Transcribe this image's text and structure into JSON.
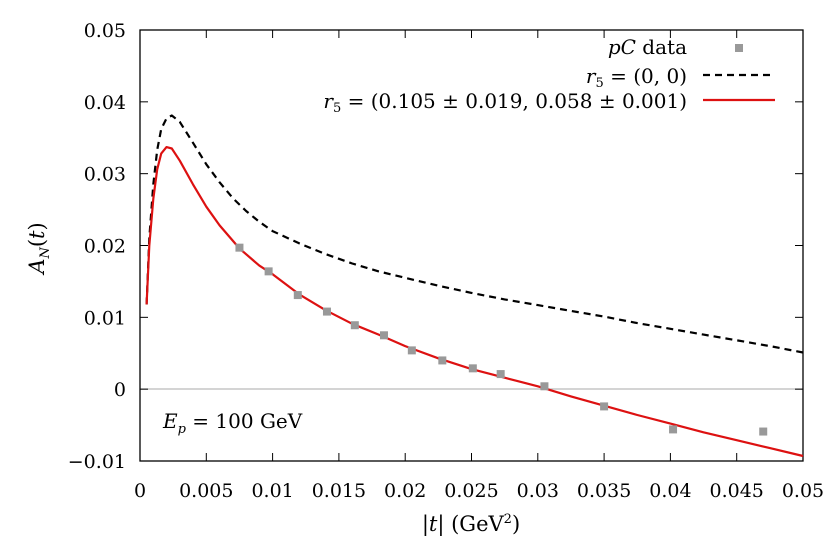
{
  "chart_data": {
    "type": "line",
    "xlabel_parts": [
      "|",
      "t",
      "| (GeV",
      "2",
      ")"
    ],
    "ylabel_parts": [
      "A",
      "N",
      "(",
      "t",
      ")"
    ],
    "xlim": [
      0,
      0.05
    ],
    "ylim": [
      -0.01,
      0.05
    ],
    "x_ticks": [
      "0",
      "0.005",
      "0.01",
      "0.015",
      "0.02",
      "0.025",
      "0.03",
      "0.035",
      "0.04",
      "0.045",
      "0.05"
    ],
    "x_tick_values": [
      0,
      0.005,
      0.01,
      0.015,
      0.02,
      0.025,
      0.03,
      0.035,
      0.04,
      0.045,
      0.05
    ],
    "y_ticks": [
      "−0.01",
      "0",
      "0.01",
      "0.02",
      "0.03",
      "0.04",
      "0.05"
    ],
    "y_tick_values": [
      -0.01,
      0,
      0.01,
      0.02,
      0.03,
      0.04,
      0.05
    ],
    "zero_line": true,
    "grid": false,
    "legend_position": "top-right",
    "annotation_parts": [
      "E",
      "p",
      " = 100 GeV"
    ],
    "colors": {
      "data": "#999999",
      "dashed": "#000000",
      "solid": "#dd1111",
      "zero": "#bbbbbb"
    },
    "series": [
      {
        "name_parts": [
          "pC",
          " data"
        ],
        "style": "scatter",
        "points": [
          [
            0.0075,
            0.0197
          ],
          [
            0.0097,
            0.0164
          ],
          [
            0.0119,
            0.0131
          ],
          [
            0.0141,
            0.0108
          ],
          [
            0.0162,
            0.0089
          ],
          [
            0.0184,
            0.0075
          ],
          [
            0.0205,
            0.0054
          ],
          [
            0.0228,
            0.004
          ],
          [
            0.0251,
            0.0029
          ],
          [
            0.0272,
            0.0021
          ],
          [
            0.0305,
            0.0004
          ],
          [
            0.035,
            -0.0024
          ],
          [
            0.0402,
            -0.0056
          ],
          [
            0.047,
            -0.0059
          ]
        ]
      },
      {
        "name_parts": [
          "r",
          "5",
          " = (0, 0)"
        ],
        "style": "dashed",
        "points": [
          [
            0.0005,
            0.0118
          ],
          [
            0.0007,
            0.021
          ],
          [
            0.001,
            0.0285
          ],
          [
            0.0013,
            0.0333
          ],
          [
            0.0016,
            0.0362
          ],
          [
            0.002,
            0.0377
          ],
          [
            0.0024,
            0.0381
          ],
          [
            0.003,
            0.0372
          ],
          [
            0.004,
            0.0343
          ],
          [
            0.005,
            0.0313
          ],
          [
            0.006,
            0.0288
          ],
          [
            0.007,
            0.0266
          ],
          [
            0.008,
            0.0248
          ],
          [
            0.009,
            0.0233
          ],
          [
            0.01,
            0.022
          ],
          [
            0.012,
            0.0203
          ],
          [
            0.014,
            0.0188
          ],
          [
            0.016,
            0.0175
          ],
          [
            0.018,
            0.0164
          ],
          [
            0.02,
            0.0155
          ],
          [
            0.0225,
            0.0144
          ],
          [
            0.025,
            0.0134
          ],
          [
            0.0275,
            0.0125
          ],
          [
            0.03,
            0.0117
          ],
          [
            0.0325,
            0.0109
          ],
          [
            0.035,
            0.0101
          ],
          [
            0.0375,
            0.0092
          ],
          [
            0.04,
            0.0084
          ],
          [
            0.0425,
            0.0076
          ],
          [
            0.045,
            0.0068
          ],
          [
            0.0475,
            0.006
          ],
          [
            0.05,
            0.0051
          ]
        ]
      },
      {
        "name_parts": [
          "r",
          "5",
          " = (0.105 ± 0.019, 0.058 ± 0.001)"
        ],
        "style": "solid",
        "points": [
          [
            0.0005,
            0.0118
          ],
          [
            0.0007,
            0.02
          ],
          [
            0.001,
            0.0265
          ],
          [
            0.0013,
            0.0306
          ],
          [
            0.0016,
            0.0328
          ],
          [
            0.002,
            0.0337
          ],
          [
            0.0024,
            0.0335
          ],
          [
            0.003,
            0.0318
          ],
          [
            0.004,
            0.0285
          ],
          [
            0.005,
            0.0254
          ],
          [
            0.006,
            0.0228
          ],
          [
            0.0075,
            0.0196
          ],
          [
            0.009,
            0.0172
          ],
          [
            0.01,
            0.016
          ],
          [
            0.012,
            0.0132
          ],
          [
            0.014,
            0.011
          ],
          [
            0.016,
            0.0091
          ],
          [
            0.018,
            0.0076
          ],
          [
            0.02,
            0.006
          ],
          [
            0.0225,
            0.0043
          ],
          [
            0.025,
            0.0028
          ],
          [
            0.0275,
            0.0016
          ],
          [
            0.03,
            0.0004
          ],
          [
            0.0325,
            -0.001
          ],
          [
            0.035,
            -0.0023
          ],
          [
            0.0375,
            -0.0036
          ],
          [
            0.04,
            -0.0048
          ],
          [
            0.0425,
            -0.006
          ],
          [
            0.045,
            -0.0071
          ],
          [
            0.0475,
            -0.0082
          ],
          [
            0.05,
            -0.0093
          ]
        ]
      }
    ]
  }
}
